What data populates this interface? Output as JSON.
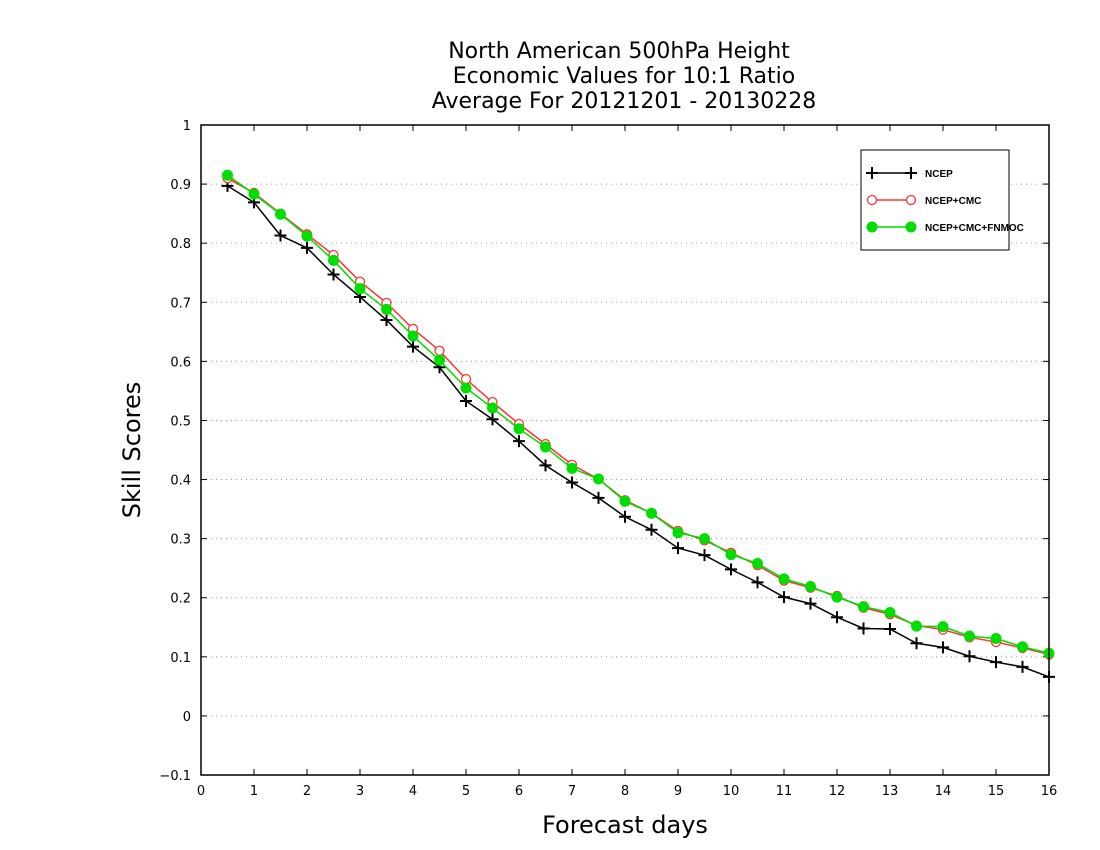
{
  "chart_data": {
    "type": "line",
    "title_lines": [
      "North American 500hPa Height",
      "Economic Values for 10:1 Ratio",
      "Average For 20121201 - 20130228"
    ],
    "xlabel": "Forecast days",
    "ylabel": "Skill Scores",
    "xlim": [
      0,
      16
    ],
    "ylim": [
      -0.1,
      1
    ],
    "xticks": [
      0,
      1,
      2,
      3,
      4,
      5,
      6,
      7,
      8,
      9,
      10,
      11,
      12,
      13,
      14,
      15,
      16
    ],
    "yticks": [
      -0.1,
      0,
      0.1,
      0.2,
      0.3,
      0.4,
      0.5,
      0.6,
      0.7,
      0.8,
      0.9,
      1
    ],
    "grid": true,
    "legend_position": "top-right",
    "x": [
      0.5,
      1,
      1.5,
      2,
      2.5,
      3,
      3.5,
      4,
      4.5,
      5,
      5.5,
      6,
      6.5,
      7,
      7.5,
      8,
      8.5,
      9,
      9.5,
      10,
      10.5,
      11,
      11.5,
      12,
      12.5,
      13,
      13.5,
      14,
      14.5,
      15,
      15.5,
      16
    ],
    "series": [
      {
        "name": "NCEP",
        "color": "#000000",
        "marker": "plus",
        "values": [
          0.897,
          0.869,
          0.813,
          0.792,
          0.747,
          0.709,
          0.67,
          0.625,
          0.59,
          0.533,
          0.502,
          0.465,
          0.424,
          0.395,
          0.369,
          0.337,
          0.315,
          0.284,
          0.272,
          0.248,
          0.226,
          0.201,
          0.19,
          0.167,
          0.148,
          0.147,
          0.123,
          0.116,
          0.101,
          0.091,
          0.083,
          0.066
        ]
      },
      {
        "name": "NCEP+CMC",
        "color": "#ff3333",
        "marker": "open-circle",
        "values": [
          0.91,
          0.885,
          0.85,
          0.815,
          0.78,
          0.735,
          0.699,
          0.655,
          0.618,
          0.57,
          0.531,
          0.494,
          0.46,
          0.425,
          0.401,
          0.365,
          0.343,
          0.313,
          0.297,
          0.276,
          0.255,
          0.229,
          0.217,
          0.203,
          0.183,
          0.172,
          0.153,
          0.146,
          0.133,
          0.125,
          0.115,
          0.104
        ]
      },
      {
        "name": "NCEP+CMC+FNMOC",
        "color": "#00dd00",
        "marker": "filled-circle",
        "values": [
          0.915,
          0.883,
          0.849,
          0.812,
          0.771,
          0.723,
          0.688,
          0.643,
          0.602,
          0.555,
          0.521,
          0.486,
          0.455,
          0.419,
          0.401,
          0.363,
          0.343,
          0.31,
          0.3,
          0.273,
          0.258,
          0.232,
          0.219,
          0.201,
          0.185,
          0.175,
          0.152,
          0.151,
          0.135,
          0.131,
          0.117,
          0.106
        ]
      }
    ]
  }
}
